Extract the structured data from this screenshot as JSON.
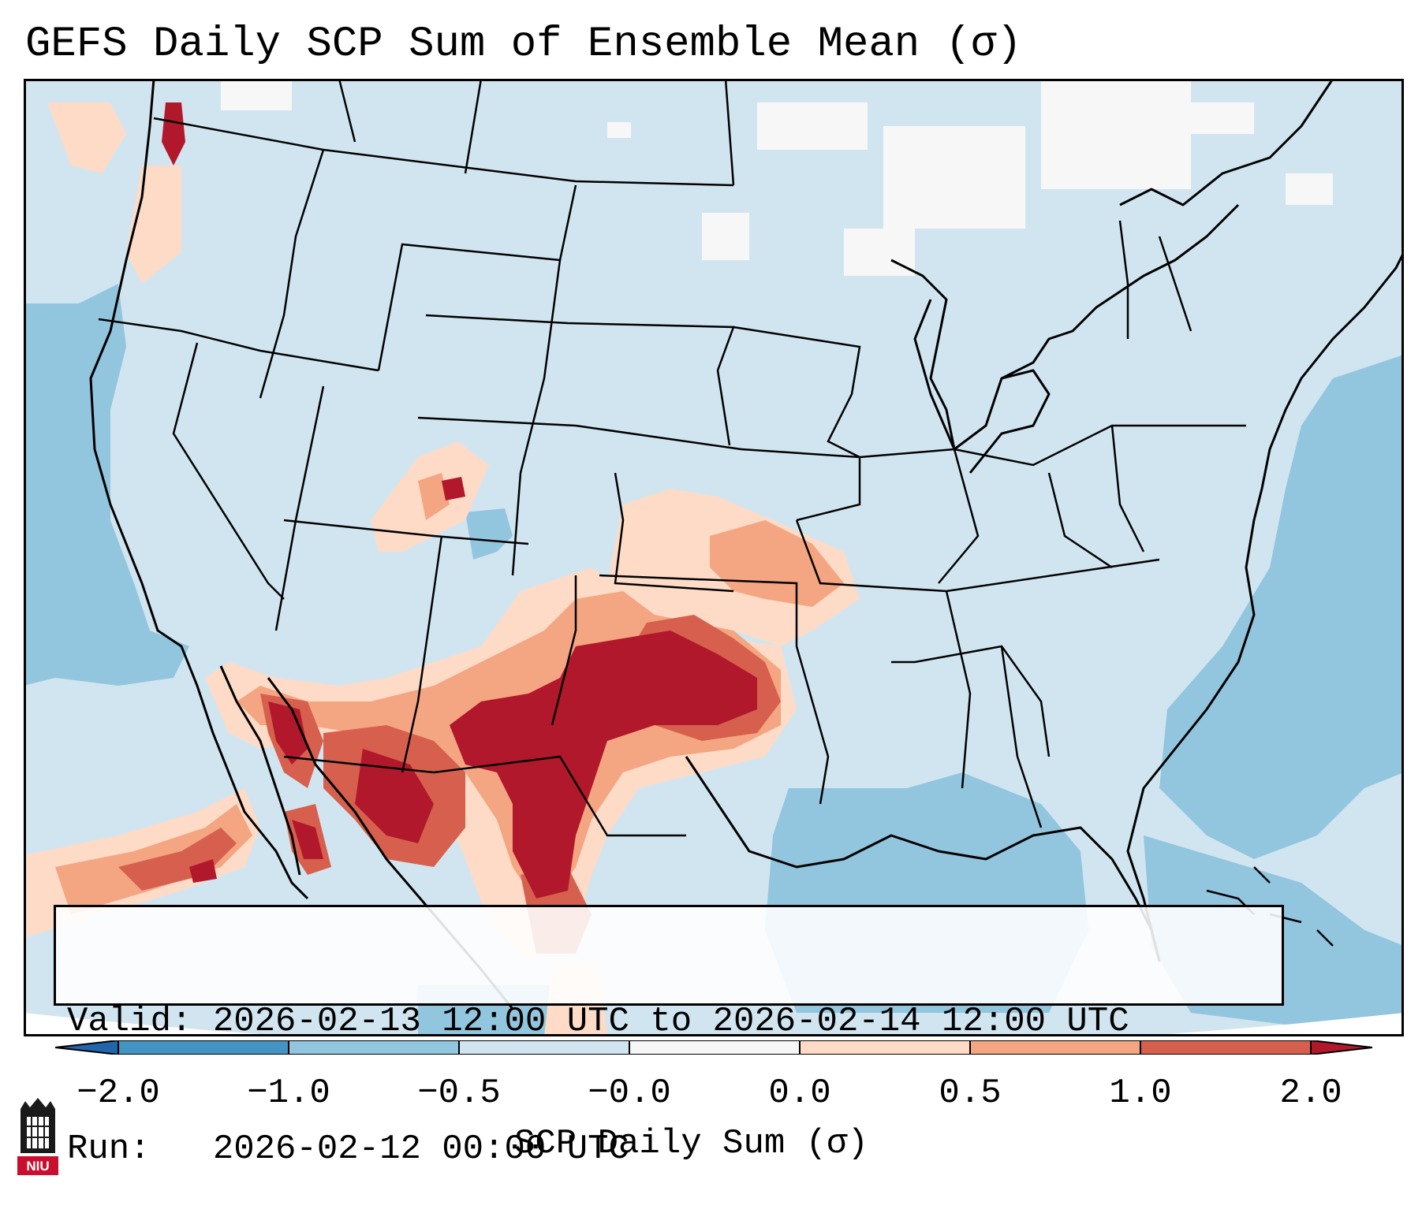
{
  "title": "GEFS Daily SCP Sum of Ensemble Mean (σ)",
  "info": {
    "valid": "Valid: 2026-02-13 12:00 UTC to 2026-02-14 12:00 UTC",
    "run": "Run:   2026-02-12 00:00 UTC"
  },
  "colorbar": {
    "label": "SCP Daily Sum (σ)",
    "ticks": [
      "−2.0",
      "−1.0",
      "−0.5",
      "−0.0",
      "0.0",
      "0.5",
      "1.0",
      "2.0"
    ],
    "colors": {
      "below": "#2166ac",
      "n2_n1": "#4393c3",
      "n1_n05": "#92c5de",
      "n05_0": "#d1e5f0",
      "zero": "#f7f7f7",
      "p0_05": "#fddbc7",
      "p05_1": "#f4a582",
      "p1_2": "#d6604d",
      "above": "#b2182b"
    }
  },
  "logo": {
    "text": "NIU"
  }
}
